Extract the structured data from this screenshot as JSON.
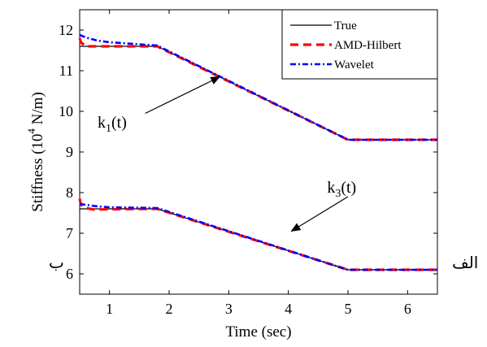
{
  "chart_data": {
    "type": "line",
    "xlabel": "Time (sec)",
    "ylabel": "Stiffness (10",
    "ylabel_exp": "4",
    "ylabel_unit": " N/m)",
    "xlim": [
      0.5,
      6.5
    ],
    "ylim": [
      5.5,
      12.5
    ],
    "xticks": [
      1,
      2,
      3,
      4,
      5,
      6
    ],
    "yticks": [
      6,
      7,
      8,
      9,
      10,
      11,
      12
    ],
    "grid": false,
    "legend_position": "top-right",
    "series": [
      {
        "name": "True",
        "color": "#000000",
        "style": "solid",
        "curves": [
          {
            "x": [
              0.5,
              1.8,
              5.0,
              6.5
            ],
            "y": [
              11.6,
              11.6,
              9.3,
              9.3
            ]
          },
          {
            "x": [
              0.5,
              1.8,
              5.0,
              6.5
            ],
            "y": [
              7.6,
              7.6,
              6.1,
              6.1
            ]
          }
        ]
      },
      {
        "name": "AMD-Hilbert",
        "color": "#ff0000",
        "style": "dashed",
        "curves": [
          {
            "x": [
              0.5,
              0.52,
              0.6,
              0.7,
              1.8,
              5.0,
              6.5
            ],
            "y": [
              11.8,
              11.7,
              11.6,
              11.6,
              11.6,
              9.3,
              9.3
            ]
          },
          {
            "x": [
              0.5,
              0.52,
              0.6,
              0.75,
              1.0,
              1.8,
              5.0,
              6.5
            ],
            "y": [
              7.85,
              7.7,
              7.62,
              7.58,
              7.59,
              7.6,
              6.1,
              6.1
            ]
          }
        ]
      },
      {
        "name": "Wavelet",
        "color": "#0000ff",
        "style": "dashdot",
        "curves": [
          {
            "x": [
              0.5,
              0.6,
              0.8,
              1.0,
              1.8,
              5.0,
              6.5
            ],
            "y": [
              11.88,
              11.82,
              11.74,
              11.7,
              11.62,
              9.3,
              9.3
            ]
          },
          {
            "x": [
              0.5,
              0.6,
              0.8,
              1.0,
              1.8,
              5.0,
              6.5
            ],
            "y": [
              7.72,
              7.7,
              7.66,
              7.64,
              7.62,
              6.1,
              6.1
            ]
          }
        ]
      }
    ],
    "annotations": [
      {
        "text": "k",
        "sub": "1",
        "suffix": "(t)",
        "x": 0.8,
        "y": 9.6,
        "arrow_from": [
          1.6,
          9.95
        ],
        "arrow_to": [
          2.85,
          10.85
        ]
      },
      {
        "text": "k",
        "sub": "3",
        "suffix": "(t)",
        "x": 4.65,
        "y": 8.0,
        "arrow_from": [
          5.0,
          7.9
        ],
        "arrow_to": [
          4.05,
          7.05
        ]
      }
    ]
  },
  "side_labels": {
    "right": "الف",
    "left": "ب"
  }
}
